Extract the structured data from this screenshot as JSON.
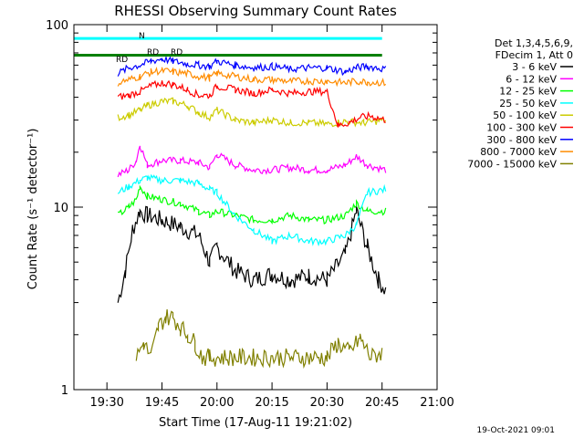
{
  "chart_data": {
    "type": "line",
    "title": "RHESSI Observing Summary Count Rates",
    "xlabel": "Start Time (17-Aug-11 19:21:02)",
    "ylabel": "Count Rate (s⁻¹ detector⁻¹)",
    "y_scale": "log",
    "ylim": [
      1,
      100
    ],
    "xlim": [
      "19:21",
      "21:00"
    ],
    "x_ticks": [
      "19:30",
      "19:45",
      "20:00",
      "20:15",
      "20:30",
      "20:45",
      "21:00"
    ],
    "y_ticks": [
      "1",
      "10",
      "100"
    ],
    "grid": false,
    "legend_header": [
      "Det 1,3,4,5,6,9,",
      "FDecim 1, Att 0"
    ],
    "legend_position": "right",
    "annotations": [
      "RD",
      "RD",
      "RD",
      "N"
    ],
    "timestamp": "19-Oct-2021 09:01",
    "series": [
      {
        "name": "3 - 6 keV",
        "color": "#000000",
        "points": [
          [
            "19:33",
            3.0
          ],
          [
            "19:35",
            4.5
          ],
          [
            "19:37",
            7.5
          ],
          [
            "19:39",
            9.5
          ],
          [
            "19:41",
            9.0
          ],
          [
            "19:45",
            8.5
          ],
          [
            "19:50",
            7.8
          ],
          [
            "19:55",
            7.0
          ],
          [
            "19:58",
            5.0
          ],
          [
            "20:00",
            6.0
          ],
          [
            "20:05",
            4.5
          ],
          [
            "20:10",
            4.0
          ],
          [
            "20:15",
            4.3
          ],
          [
            "20:20",
            4.0
          ],
          [
            "20:25",
            4.2
          ],
          [
            "20:30",
            4.0
          ],
          [
            "20:35",
            5.5
          ],
          [
            "20:38",
            9.5
          ],
          [
            "20:41",
            6.0
          ],
          [
            "20:44",
            4.0
          ],
          [
            "20:46",
            3.5
          ]
        ]
      },
      {
        "name": "6 - 12 keV",
        "color": "#ff00ff",
        "points": [
          [
            "19:33",
            15.0
          ],
          [
            "19:36",
            16.0
          ],
          [
            "19:38",
            18.0
          ],
          [
            "19:39",
            22.0
          ],
          [
            "19:41",
            17.0
          ],
          [
            "19:45",
            18.0
          ],
          [
            "19:50",
            18.0
          ],
          [
            "19:55",
            17.5
          ],
          [
            "19:58",
            16.5
          ],
          [
            "20:00",
            19.5
          ],
          [
            "20:05",
            17.0
          ],
          [
            "20:10",
            16.0
          ],
          [
            "20:15",
            16.0
          ],
          [
            "20:20",
            16.5
          ],
          [
            "20:25",
            16.0
          ],
          [
            "20:30",
            16.0
          ],
          [
            "20:35",
            17.0
          ],
          [
            "20:38",
            19.0
          ],
          [
            "20:41",
            17.0
          ],
          [
            "20:46",
            16.0
          ]
        ]
      },
      {
        "name": "12 - 25 keV",
        "color": "#00ff00",
        "points": [
          [
            "19:33",
            9.0
          ],
          [
            "19:36",
            10.0
          ],
          [
            "19:38",
            11.0
          ],
          [
            "19:39",
            13.0
          ],
          [
            "19:41",
            11.5
          ],
          [
            "19:45",
            11.0
          ],
          [
            "19:50",
            10.5
          ],
          [
            "19:55",
            9.5
          ],
          [
            "19:58",
            9.0
          ],
          [
            "20:00",
            9.5
          ],
          [
            "20:05",
            9.0
          ],
          [
            "20:10",
            8.5
          ],
          [
            "20:15",
            8.5
          ],
          [
            "20:20",
            9.0
          ],
          [
            "20:25",
            8.5
          ],
          [
            "20:30",
            8.5
          ],
          [
            "20:35",
            9.0
          ],
          [
            "20:38",
            10.5
          ],
          [
            "20:41",
            9.5
          ],
          [
            "20:46",
            9.5
          ]
        ]
      },
      {
        "name": "25 - 50 keV",
        "color": "#00ffff",
        "points": [
          [
            "19:33",
            12.0
          ],
          [
            "19:36",
            13.0
          ],
          [
            "19:39",
            14.0
          ],
          [
            "19:41",
            14.5
          ],
          [
            "19:45",
            14.0
          ],
          [
            "19:50",
            14.0
          ],
          [
            "19:55",
            13.5
          ],
          [
            "19:58",
            12.5
          ],
          [
            "20:00",
            12.0
          ],
          [
            "20:05",
            9.0
          ],
          [
            "20:10",
            7.5
          ],
          [
            "20:15",
            6.5
          ],
          [
            "20:20",
            7.0
          ],
          [
            "20:25",
            6.5
          ],
          [
            "20:30",
            6.5
          ],
          [
            "20:35",
            7.0
          ],
          [
            "20:38",
            8.0
          ],
          [
            "20:41",
            12.0
          ],
          [
            "20:46",
            12.5
          ]
        ]
      },
      {
        "name": "50 - 100 keV",
        "color": "#cccc00",
        "points": [
          [
            "19:33",
            31.0
          ],
          [
            "19:36",
            32.0
          ],
          [
            "19:39",
            34.0
          ],
          [
            "19:41",
            36.0
          ],
          [
            "19:45",
            38.0
          ],
          [
            "19:48",
            38.0
          ],
          [
            "19:52",
            36.0
          ],
          [
            "19:55",
            33.0
          ],
          [
            "19:58",
            31.0
          ],
          [
            "20:00",
            34.0
          ],
          [
            "20:05",
            30.0
          ],
          [
            "20:10",
            29.0
          ],
          [
            "20:15",
            30.0
          ],
          [
            "20:20",
            29.0
          ],
          [
            "20:25",
            29.0
          ],
          [
            "20:30",
            28.5
          ],
          [
            "20:35",
            29.5
          ],
          [
            "20:40",
            29.0
          ],
          [
            "20:46",
            30.0
          ]
        ]
      },
      {
        "name": "100 - 300 keV",
        "color": "#ff0000",
        "points": [
          [
            "19:33",
            40.0
          ],
          [
            "19:36",
            41.0
          ],
          [
            "19:39",
            43.0
          ],
          [
            "19:42",
            46.0
          ],
          [
            "19:45",
            48.0
          ],
          [
            "19:48",
            47.0
          ],
          [
            "19:52",
            44.0
          ],
          [
            "19:55",
            41.0
          ],
          [
            "19:58",
            41.0
          ],
          [
            "20:00",
            46.0
          ],
          [
            "20:05",
            44.0
          ],
          [
            "20:10",
            42.0
          ],
          [
            "20:15",
            44.0
          ],
          [
            "20:20",
            42.0
          ],
          [
            "20:25",
            43.0
          ],
          [
            "20:30",
            43.0
          ],
          [
            "20:33",
            28.0
          ],
          [
            "20:36",
            29.0
          ],
          [
            "20:39",
            31.0
          ],
          [
            "20:42",
            31.5
          ],
          [
            "20:46",
            30.0
          ]
        ]
      },
      {
        "name": "300 - 800 keV",
        "color": "#0000ff",
        "points": [
          [
            "19:33",
            54.0
          ],
          [
            "19:36",
            58.0
          ],
          [
            "19:39",
            60.0
          ],
          [
            "19:42",
            63.0
          ],
          [
            "19:45",
            65.0
          ],
          [
            "19:48",
            63.0
          ],
          [
            "19:52",
            61.0
          ],
          [
            "19:55",
            60.0
          ],
          [
            "19:58",
            59.0
          ],
          [
            "20:00",
            63.0
          ],
          [
            "20:05",
            60.0
          ],
          [
            "20:10",
            58.0
          ],
          [
            "20:15",
            59.0
          ],
          [
            "20:20",
            57.0
          ],
          [
            "20:25",
            58.0
          ],
          [
            "20:30",
            58.0
          ],
          [
            "20:35",
            55.0
          ],
          [
            "20:38",
            58.0
          ],
          [
            "20:41",
            59.0
          ],
          [
            "20:46",
            57.0
          ]
        ]
      },
      {
        "name": "800 - 7000 keV",
        "color": "#ff8c00",
        "points": [
          [
            "19:33",
            48.0
          ],
          [
            "19:36",
            50.0
          ],
          [
            "19:39",
            52.0
          ],
          [
            "19:42",
            55.0
          ],
          [
            "19:45",
            56.0
          ],
          [
            "19:48",
            55.0
          ],
          [
            "19:52",
            54.0
          ],
          [
            "19:55",
            52.0
          ],
          [
            "19:58",
            51.0
          ],
          [
            "20:00",
            54.0
          ],
          [
            "20:05",
            52.0
          ],
          [
            "20:10",
            50.0
          ],
          [
            "20:15",
            50.0
          ],
          [
            "20:20",
            49.0
          ],
          [
            "20:25",
            49.0
          ],
          [
            "20:30",
            49.0
          ],
          [
            "20:35",
            48.0
          ],
          [
            "20:38",
            49.0
          ],
          [
            "20:41",
            48.5
          ],
          [
            "20:46",
            48.0
          ]
        ]
      },
      {
        "name": "7000 - 15000 keV",
        "color": "#808000",
        "points": [
          [
            "19:38",
            1.5
          ],
          [
            "19:40",
            1.8
          ],
          [
            "19:42",
            1.5
          ],
          [
            "19:44",
            2.2
          ],
          [
            "19:46",
            2.5
          ],
          [
            "19:48",
            2.5
          ],
          [
            "19:50",
            2.2
          ],
          [
            "19:52",
            2.0
          ],
          [
            "19:54",
            1.8
          ],
          [
            "19:56",
            1.5
          ],
          [
            "19:58",
            1.5
          ],
          [
            "20:30",
            1.5
          ],
          [
            "20:33",
            1.8
          ],
          [
            "20:36",
            1.6
          ],
          [
            "20:39",
            1.9
          ],
          [
            "20:42",
            1.5
          ],
          [
            "20:45",
            1.6
          ]
        ]
      }
    ],
    "flags": [
      {
        "name": "RD",
        "color": "#008000",
        "value": 68,
        "x_range": [
          "19:21",
          "20:45"
        ]
      },
      {
        "name": "N",
        "color": "#00ffff",
        "value": 84,
        "x_range": [
          "19:21",
          "20:45"
        ]
      }
    ]
  },
  "colors": {
    "background": "#ffffff",
    "axis": "#000000"
  }
}
